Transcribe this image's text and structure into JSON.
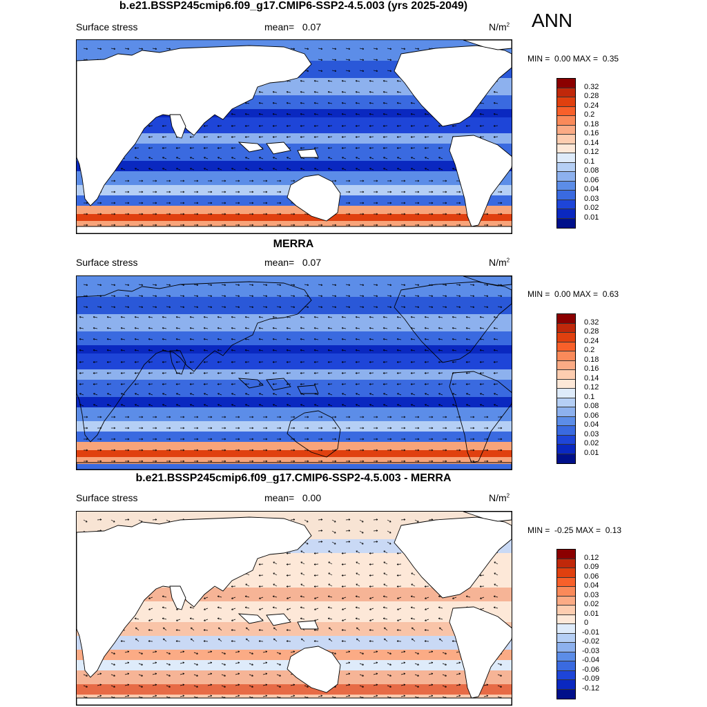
{
  "season": "ANN",
  "panels": [
    {
      "title": "b.e21.BSSP245cmip6.f09_g17.CMIP6-SSP2-4.5.003 (yrs 2025-2049)",
      "variable": "Surface stress",
      "mean_label": "mean=",
      "mean": "0.07",
      "units": "N/m",
      "units_sup": "2",
      "min_label": "MIN =",
      "min": "0.00",
      "max_label": "MAX =",
      "max": "0.35",
      "cbar_ticks": [
        "0.32",
        "0.28",
        "0.24",
        "0.2",
        "0.18",
        "0.16",
        "0.14",
        "0.12",
        "0.1",
        "0.08",
        "0.06",
        "0.04",
        "0.03",
        "0.02",
        "0.01"
      ],
      "cbar_colors": [
        "#8b0000",
        "#c0280a",
        "#e0400f",
        "#f8602a",
        "#fa8a5a",
        "#fbab85",
        "#fdcdb0",
        "#fde8d8",
        "#deebfa",
        "#b5cff5",
        "#8db1ee",
        "#5c8de8",
        "#3a6ae0",
        "#1e45d8",
        "#0a28c0",
        "#00108a"
      ]
    },
    {
      "title": "MERRA",
      "variable": "Surface stress",
      "mean_label": "mean=",
      "mean": "0.07",
      "units": "N/m",
      "units_sup": "2",
      "min_label": "MIN =",
      "min": "0.00",
      "max_label": "MAX =",
      "max": "0.63",
      "cbar_ticks": [
        "0.32",
        "0.28",
        "0.24",
        "0.2",
        "0.18",
        "0.16",
        "0.14",
        "0.12",
        "0.1",
        "0.08",
        "0.06",
        "0.04",
        "0.03",
        "0.02",
        "0.01"
      ],
      "cbar_colors": [
        "#8b0000",
        "#c0280a",
        "#e0400f",
        "#f8602a",
        "#fa8a5a",
        "#fbab85",
        "#fdcdb0",
        "#fde8d8",
        "#deebfa",
        "#b5cff5",
        "#8db1ee",
        "#5c8de8",
        "#3a6ae0",
        "#1e45d8",
        "#0a28c0",
        "#00108a"
      ]
    },
    {
      "title": "b.e21.BSSP245cmip6.f09_g17.CMIP6-SSP2-4.5.003 - MERRA",
      "variable": "Surface stress",
      "mean_label": "mean=",
      "mean": "0.00",
      "units": "N/m",
      "units_sup": "2",
      "min_label": "MIN =",
      "min": "-0.25",
      "max_label": "MAX =",
      "max": "0.13",
      "cbar_ticks": [
        "0.12",
        "0.09",
        "0.06",
        "0.04",
        "0.03",
        "0.02",
        "0.01",
        "0",
        "-0.01",
        "-0.02",
        "-0.03",
        "-0.04",
        "-0.06",
        "-0.09",
        "-0.12"
      ],
      "cbar_colors": [
        "#8b0000",
        "#c0280a",
        "#e0400f",
        "#f8602a",
        "#fa8a5a",
        "#fbab85",
        "#fdcdb0",
        "#fde8d8",
        "#deebfa",
        "#b5cff5",
        "#8db1ee",
        "#5c8de8",
        "#3a6ae0",
        "#1e45d8",
        "#0a28c0",
        "#00108a"
      ]
    }
  ],
  "colors": {
    "land": "#ffffff",
    "coast": "#000000",
    "arrow": "#000000"
  }
}
